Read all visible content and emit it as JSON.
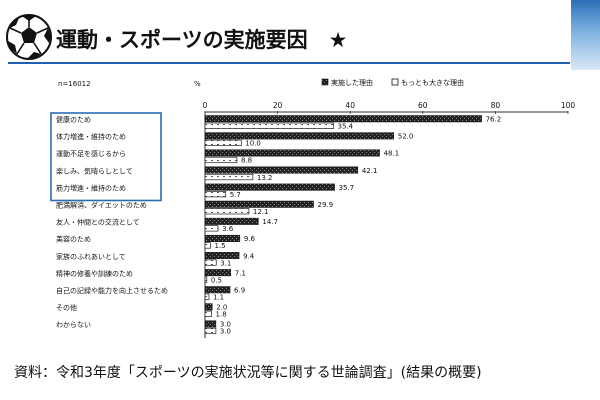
{
  "slide": {
    "title": "運動・スポーツの実施要因　★",
    "source": "資料：令和3年度「スポーツの実施状況等に関する世論調査」(結果の概要)"
  },
  "chart_data": {
    "type": "bar",
    "orientation": "horizontal",
    "sample_label": "n=16012",
    "unit_label": "%",
    "xlim": [
      0,
      100
    ],
    "ticks": [
      "0",
      "20",
      "40",
      "60",
      "80",
      "100"
    ],
    "legend_position": "top-right",
    "categories": [
      "健康のため",
      "体力増進・維持のため",
      "運動不足を感じるから",
      "楽しみ、気晴らしとして",
      "筋力増進・維持のため",
      "肥満解消、ダイエットのため",
      "友人・仲間との交流として",
      "美容のため",
      "家族のふれあいとして",
      "精神の修養や訓練のため",
      "自己の記録や能力を向上させるため",
      "その他",
      "わからない"
    ],
    "highlighted_categories": [
      0,
      1,
      2,
      3,
      4
    ],
    "series": [
      {
        "name": "実施した理由",
        "values": [
          76.2,
          52.0,
          48.1,
          42.1,
          35.7,
          29.9,
          14.7,
          9.6,
          9.4,
          7.1,
          6.9,
          2.0,
          3.0
        ],
        "labels": [
          "76.2",
          "52.0",
          "48.1",
          "42.1",
          "35.7",
          "29.9",
          "14.7",
          "9.6",
          "9.4",
          "7.1",
          "6.9",
          "2.0",
          "3.0"
        ],
        "color": "#1a1a1a"
      },
      {
        "name": "もっとも大きな理由",
        "values": [
          35.4,
          10.0,
          8.8,
          13.2,
          5.7,
          12.1,
          3.6,
          1.5,
          3.1,
          0.5,
          1.1,
          1.8,
          3.0
        ],
        "labels": [
          "35.4",
          "10.0",
          "8.8",
          "13.2",
          "5.7",
          "12.1",
          "3.6",
          "1.5",
          "3.1",
          "0.5",
          "1.1",
          "1.8",
          "3.0"
        ],
        "color": "#ffffff"
      }
    ],
    "colors": {
      "accent": "#1f5fb0",
      "highlight_box": "#2a6db5",
      "axis": "#333333"
    }
  }
}
